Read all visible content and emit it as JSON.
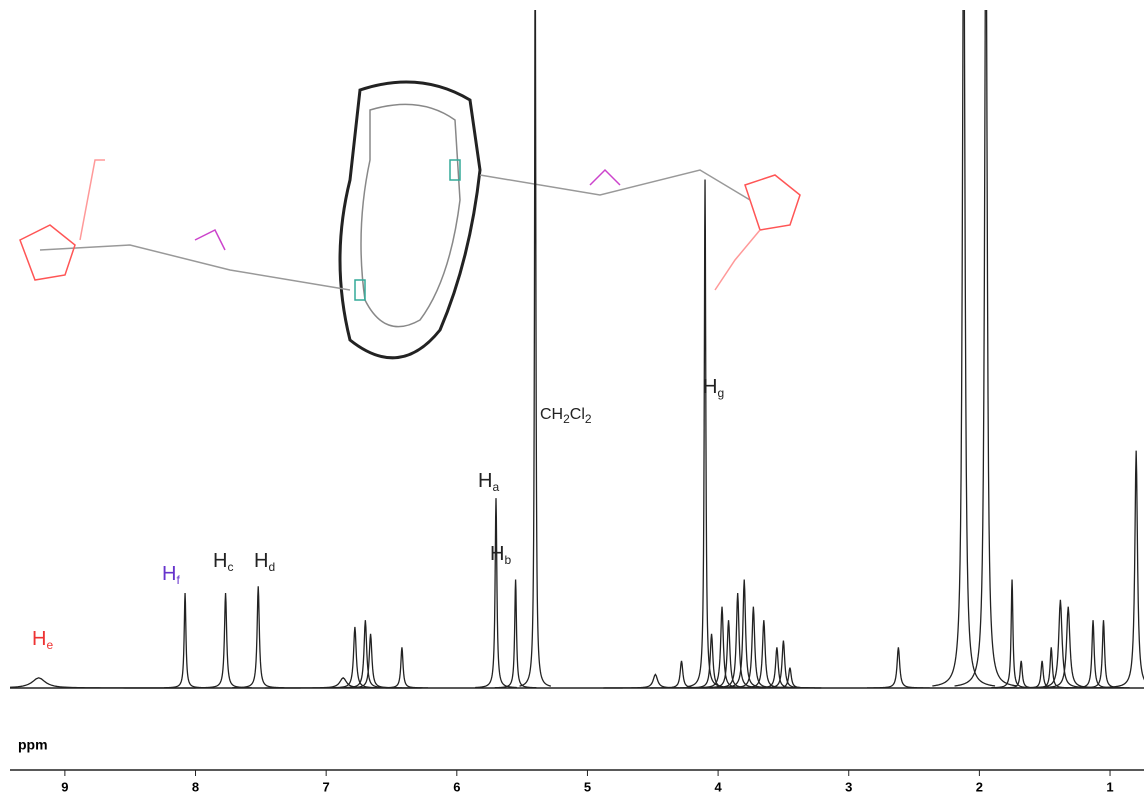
{
  "chart_data": {
    "type": "nmr",
    "xlabel": "ppm",
    "xlim": [
      9.42,
      0.74
    ],
    "xticks": [
      9,
      8,
      7,
      6,
      5,
      4,
      3,
      2,
      1
    ],
    "ylim": [
      0,
      100
    ],
    "color": "#222222",
    "peaks": [
      {
        "ppm": 9.2,
        "height": 1.5,
        "width": 0.06
      },
      {
        "ppm": 8.08,
        "height": 14,
        "width": 0.008
      },
      {
        "ppm": 7.77,
        "height": 14,
        "width": 0.01
      },
      {
        "ppm": 7.52,
        "height": 15,
        "width": 0.01
      },
      {
        "ppm": 6.87,
        "height": 1.5,
        "width": 0.03
      },
      {
        "ppm": 6.78,
        "height": 9,
        "width": 0.012
      },
      {
        "ppm": 6.7,
        "height": 10,
        "width": 0.012
      },
      {
        "ppm": 6.66,
        "height": 8,
        "width": 0.012
      },
      {
        "ppm": 6.42,
        "height": 6,
        "width": 0.01
      },
      {
        "ppm": 5.7,
        "height": 28,
        "width": 0.008
      },
      {
        "ppm": 5.55,
        "height": 16,
        "width": 0.008
      },
      {
        "ppm": 5.4,
        "height": 110,
        "width": 0.006
      },
      {
        "ppm": 4.48,
        "height": 2,
        "width": 0.02
      },
      {
        "ppm": 4.28,
        "height": 4,
        "width": 0.012
      },
      {
        "ppm": 4.1,
        "height": 75,
        "width": 0.007
      },
      {
        "ppm": 4.05,
        "height": 8,
        "width": 0.012
      },
      {
        "ppm": 3.97,
        "height": 12,
        "width": 0.012
      },
      {
        "ppm": 3.92,
        "height": 10,
        "width": 0.012
      },
      {
        "ppm": 3.85,
        "height": 14,
        "width": 0.012
      },
      {
        "ppm": 3.8,
        "height": 16,
        "width": 0.012
      },
      {
        "ppm": 3.73,
        "height": 12,
        "width": 0.012
      },
      {
        "ppm": 3.65,
        "height": 10,
        "width": 0.012
      },
      {
        "ppm": 3.55,
        "height": 6,
        "width": 0.012
      },
      {
        "ppm": 3.5,
        "height": 7,
        "width": 0.012
      },
      {
        "ppm": 3.45,
        "height": 3,
        "width": 0.012
      },
      {
        "ppm": 2.62,
        "height": 6,
        "width": 0.012
      },
      {
        "ppm": 2.12,
        "height": 120,
        "width": 0.012
      },
      {
        "ppm": 1.95,
        "height": 120,
        "width": 0.012
      },
      {
        "ppm": 1.75,
        "height": 16,
        "width": 0.008
      },
      {
        "ppm": 1.68,
        "height": 4,
        "width": 0.01
      },
      {
        "ppm": 1.52,
        "height": 4,
        "width": 0.01
      },
      {
        "ppm": 1.45,
        "height": 6,
        "width": 0.01
      },
      {
        "ppm": 1.38,
        "height": 13,
        "width": 0.015
      },
      {
        "ppm": 1.32,
        "height": 12,
        "width": 0.015
      },
      {
        "ppm": 1.13,
        "height": 10,
        "width": 0.01
      },
      {
        "ppm": 1.05,
        "height": 10,
        "width": 0.01
      },
      {
        "ppm": 0.8,
        "height": 35,
        "width": 0.012
      }
    ],
    "annotations": {
      "He": [
        "H",
        "e"
      ],
      "Hf": [
        "H",
        "f"
      ],
      "Hc": [
        "H",
        "c"
      ],
      "Hd": [
        "H",
        "d"
      ],
      "Ha": [
        "H",
        "a"
      ],
      "Hb": [
        "H",
        "b"
      ],
      "Hg": [
        "H",
        "g"
      ],
      "solvent": [
        "CH",
        "2",
        "Cl",
        "2"
      ]
    }
  }
}
